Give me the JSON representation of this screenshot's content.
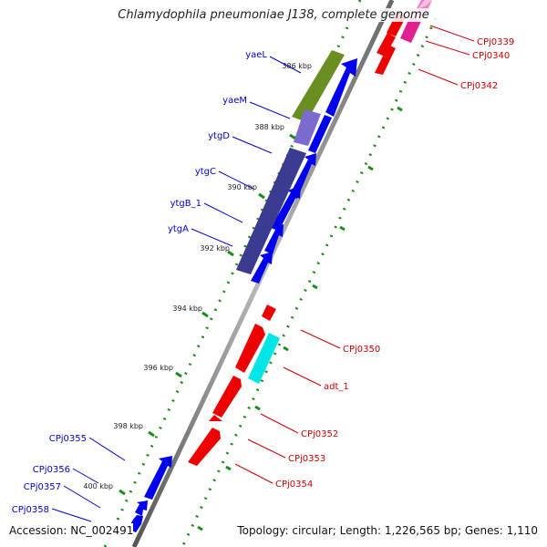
{
  "title": "Chlamydophila pneumoniae J138, complete genome",
  "footer": {
    "accession": "Accession: NC_002491",
    "topology": "Topology: circular; Length: 1,226,565 bp; Genes: 1,110"
  },
  "ruler_labels": [
    "386 kbp",
    "388 kbp",
    "390 kbp",
    "392 kbp",
    "394 kbp",
    "396 kbp",
    "398 kbp",
    "400 kbp"
  ],
  "genes_left": [
    "yaeL",
    "yaeM",
    "ytgD",
    "ytgC",
    "ytgB_1",
    "ytgA",
    "CPj0355",
    "CPj0356",
    "CPj0357",
    "CPj0358"
  ],
  "genes_right": [
    "CPj0339",
    "CPj0340",
    "CPj0342",
    "CPj0350",
    "adt_1",
    "CPj0352",
    "CPj0353",
    "CPj0354"
  ],
  "colors": {
    "forward_gene": "#0000ee",
    "reverse_gene": "#ee0000",
    "left_label": "#0000cc",
    "right_label": "#cc0000",
    "backbone": "#888888",
    "tick": "#1a8a1a",
    "olive": "#6b8e23",
    "indigo": "#3b3b8f",
    "cyan": "#00e5e5",
    "magenta": "#e0208f"
  }
}
